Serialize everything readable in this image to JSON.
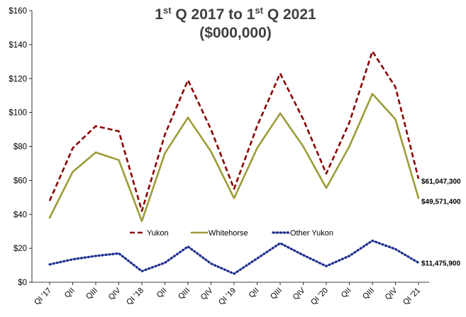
{
  "chart_data": {
    "type": "line",
    "title_line1_main": "1",
    "title_line1_sup": "st",
    "title_line1_mid": " Q 2017 to 1",
    "title_line1_sup2": "st",
    "title_line1_end": " Q 2021",
    "title_line2": "($000,000)",
    "ylim": [
      0,
      160
    ],
    "y_ticks": [
      {
        "value": 0,
        "label": "$0"
      },
      {
        "value": 20,
        "label": "$20"
      },
      {
        "value": 40,
        "label": "$40"
      },
      {
        "value": 60,
        "label": "$60"
      },
      {
        "value": 80,
        "label": "$80"
      },
      {
        "value": 100,
        "label": "$100"
      },
      {
        "value": 120,
        "label": "$120"
      },
      {
        "value": 140,
        "label": "$140"
      },
      {
        "value": 160,
        "label": "$160"
      }
    ],
    "categories": [
      "QI '17",
      "QII",
      "QIII",
      "QIV",
      "QI '18",
      "QII",
      "QIII",
      "QIV",
      "QI '19",
      "QII",
      "QIII",
      "QIV",
      "QI '20",
      "QII",
      "QIII",
      "QIV",
      "QI '21"
    ],
    "series": [
      {
        "name": "Yukon",
        "color": "#8B0000",
        "dash": "dashed",
        "values": [
          48,
          79,
          92,
          89,
          42,
          87,
          119,
          90,
          55,
          92,
          123,
          96,
          64,
          94,
          136,
          115,
          61.05
        ],
        "end_label": "$61,047,300"
      },
      {
        "name": "Whitehorse",
        "color": "#9C9C38",
        "dash": "solid",
        "values": [
          38,
          65,
          76.5,
          72,
          36,
          76,
          97,
          77,
          49.5,
          79,
          99.5,
          80,
          55.5,
          80,
          111,
          96,
          49.57
        ],
        "end_label": "$49,571,400"
      },
      {
        "name": "Other Yukon",
        "color": "#1F2F8F",
        "dash": "dotted",
        "values": [
          10.5,
          13.5,
          15.5,
          17,
          6.5,
          11.5,
          21,
          11,
          5,
          14,
          23,
          16,
          9.5,
          15.5,
          24.5,
          19.5,
          11.48
        ],
        "end_label": "$11,475,900"
      }
    ],
    "legend_position": "middle-center",
    "grid": false
  }
}
